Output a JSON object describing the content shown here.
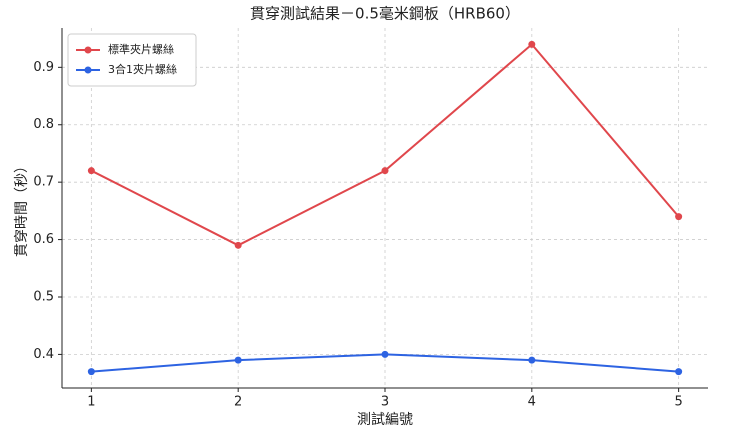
{
  "chart_data": {
    "type": "line",
    "title": "貫穿測試結果－0.5毫米鋼板（HRB60）",
    "x_label": "測試編號",
    "y_label": "貫穿時間（秒）",
    "x": [
      1,
      2,
      3,
      4,
      5
    ],
    "series": [
      {
        "name": "標準夾片螺絲",
        "color": "#e0474c",
        "values": [
          0.72,
          0.59,
          0.72,
          0.94,
          0.64
        ]
      },
      {
        "name": "3合1夾片螺絲",
        "color": "#2d63e2",
        "values": [
          0.37,
          0.39,
          0.4,
          0.39,
          0.37
        ]
      }
    ],
    "xlim": [
      0.8,
      5.2
    ],
    "xticks": [
      1,
      2,
      3,
      4,
      5
    ],
    "ylim": [
      0.3415,
      0.9685
    ],
    "yticks": [
      0.4,
      0.5,
      0.6,
      0.7,
      0.8,
      0.9
    ],
    "grid": true,
    "legend": "upper-left"
  }
}
